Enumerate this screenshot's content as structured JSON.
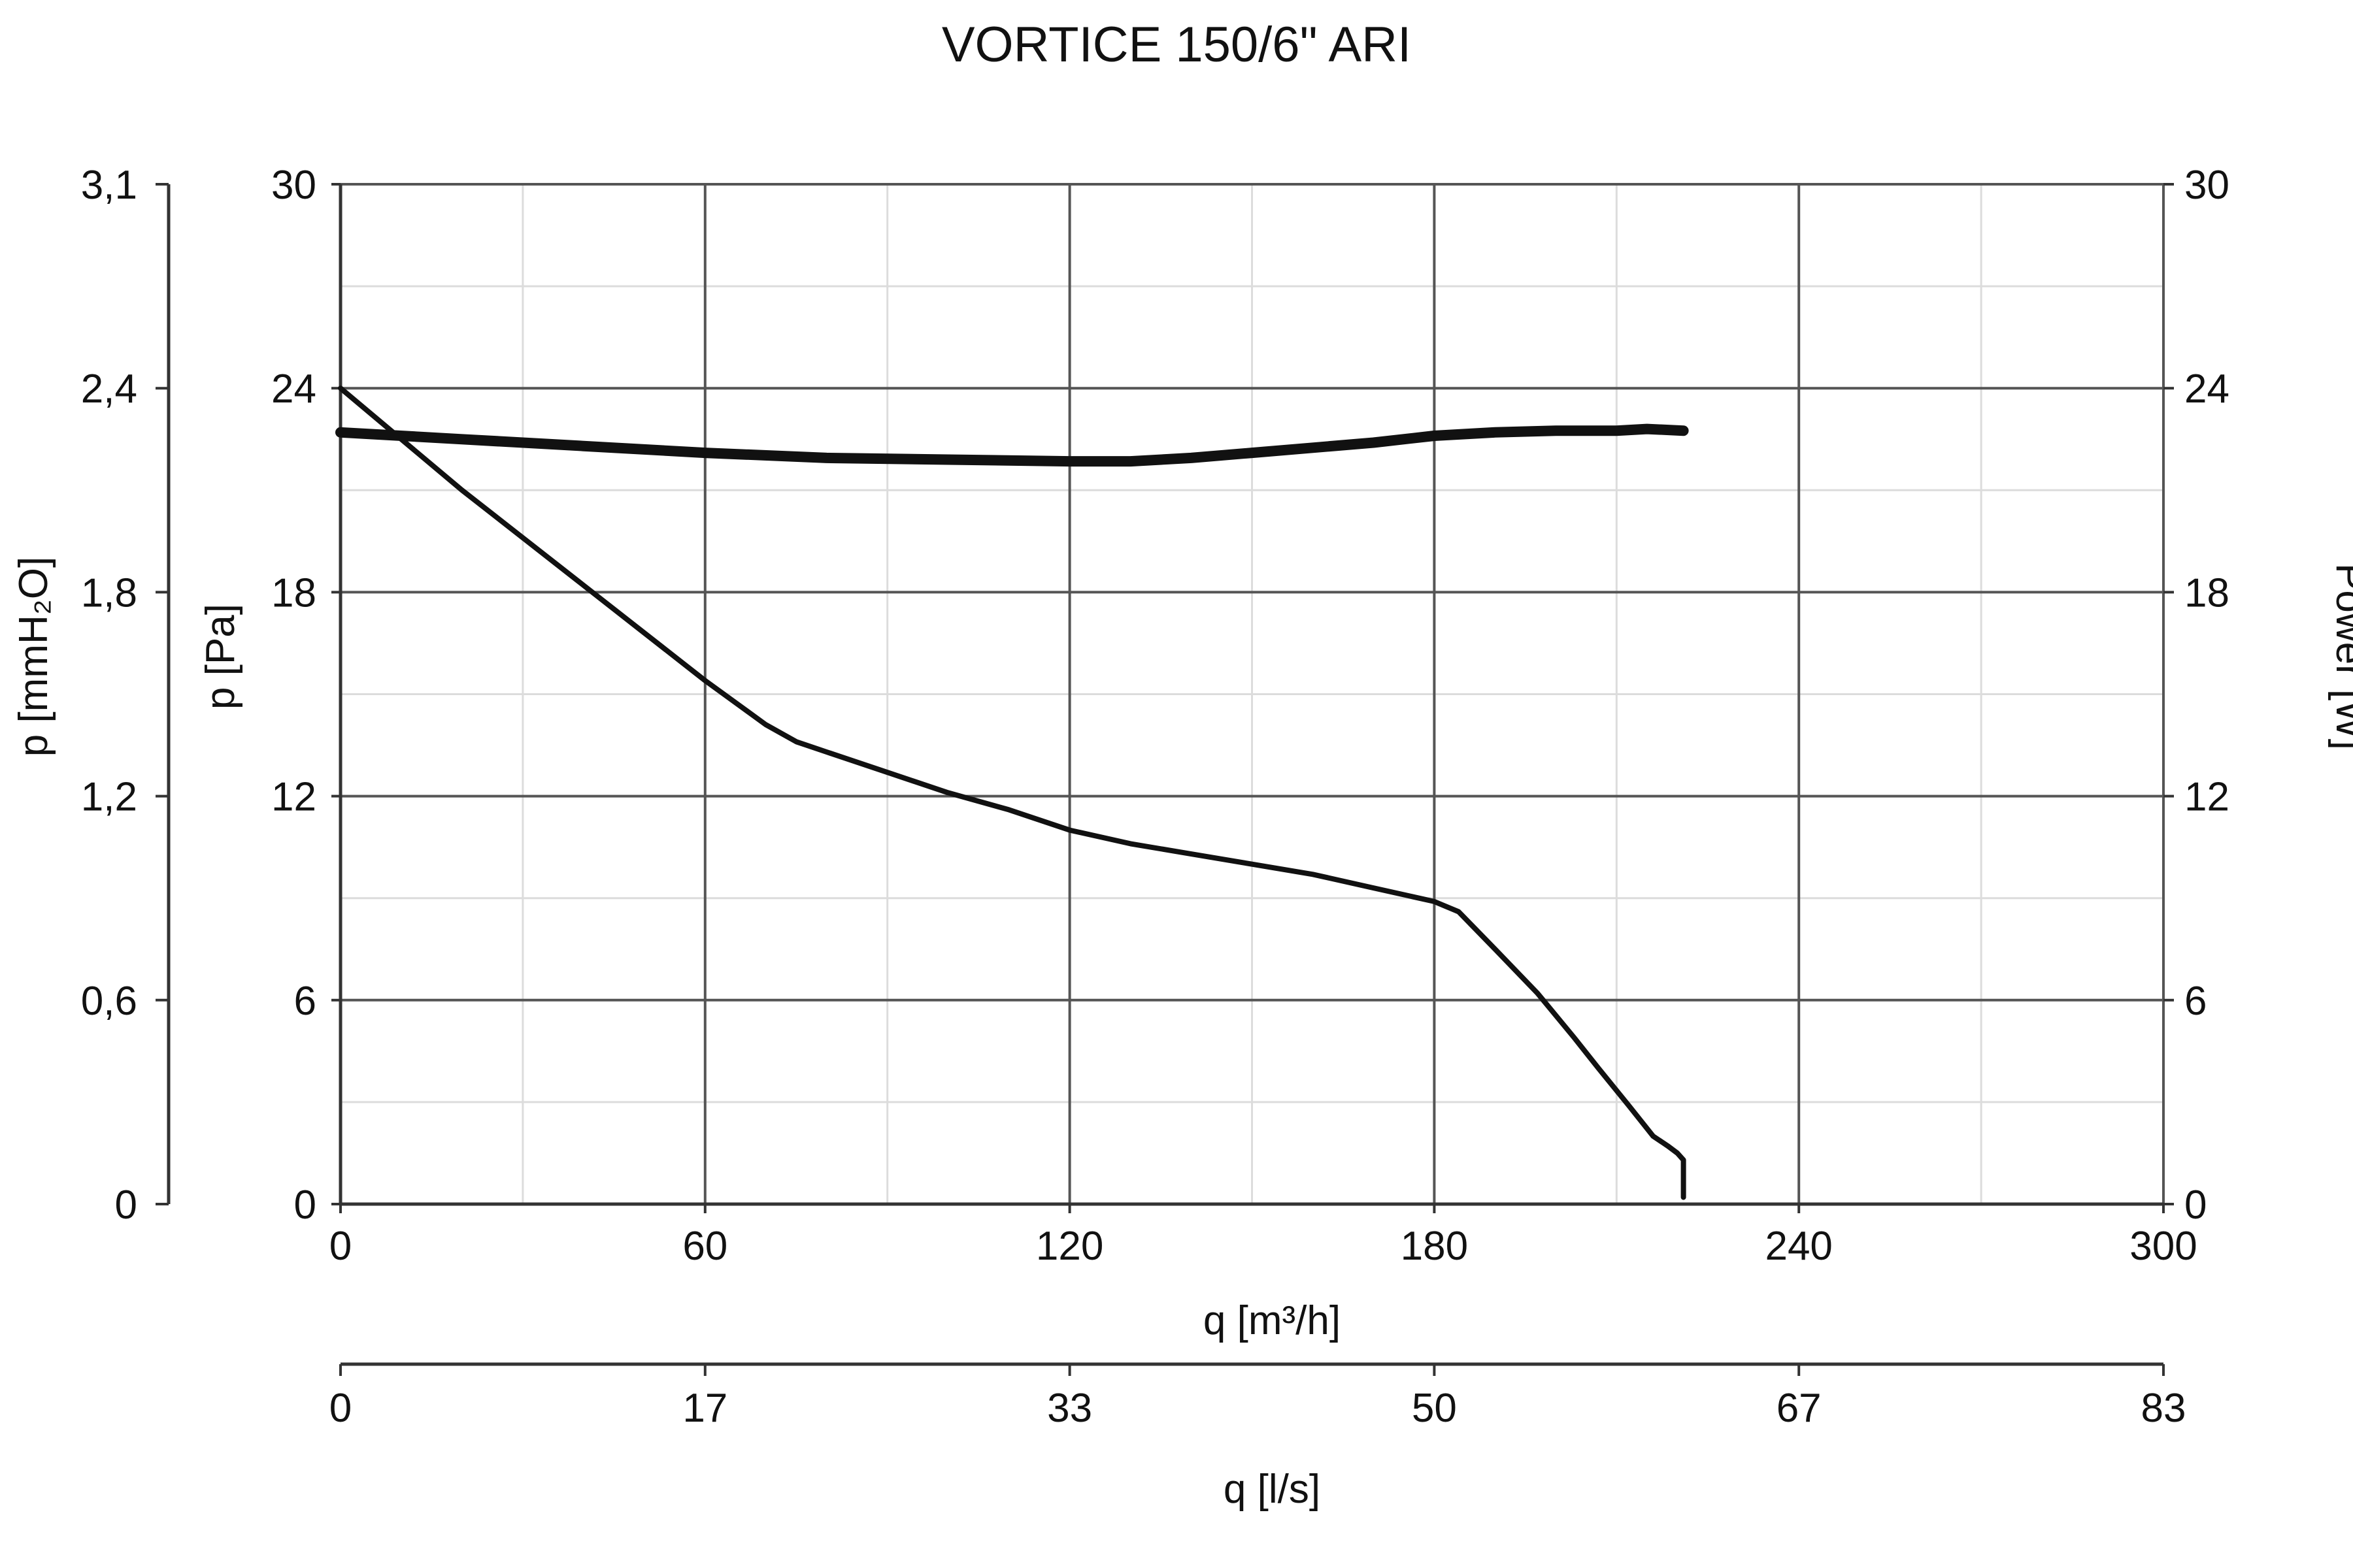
{
  "chart_data": {
    "type": "line",
    "title": "VORTICE 150/6\" ARI",
    "grid": true,
    "x_axis": {
      "label": "q [m³/h]",
      "range": [
        0,
        300
      ],
      "ticks": [
        "0",
        "60",
        "120",
        "180",
        "240",
        "300"
      ],
      "minor_step": 30
    },
    "x2_axis": {
      "label": "q [l/s]",
      "ticks": [
        "0",
        "17",
        "33",
        "50",
        "67",
        "83"
      ]
    },
    "y_axis": {
      "label": "p [Pa]",
      "range": [
        0,
        30
      ],
      "ticks": [
        "0",
        "6",
        "12",
        "18",
        "24",
        "30"
      ],
      "minor_step": 3
    },
    "y_axis_outer": {
      "label": "p [mmH₂O]",
      "ticks": [
        "0",
        "0,6",
        "1,2",
        "1,8",
        "2,4",
        "3,1"
      ]
    },
    "y2_axis": {
      "label": "Power [W]",
      "range": [
        0,
        30
      ],
      "ticks": [
        "0",
        "6",
        "12",
        "18",
        "24",
        "30"
      ]
    },
    "series": [
      {
        "id": "pressure",
        "axis": "p [Pa]",
        "color": "#111111",
        "x": [
          0,
          10,
          20,
          30,
          40,
          50,
          60,
          70,
          75,
          80,
          90,
          100,
          110,
          120,
          130,
          140,
          150,
          160,
          170,
          180,
          184,
          190,
          197,
          203,
          207,
          212,
          216,
          218.5,
          220,
          221,
          221
        ],
        "y": [
          24,
          22.5,
          21.0,
          19.6,
          18.2,
          16.8,
          15.4,
          14.1,
          13.6,
          13.3,
          12.7,
          12.1,
          11.6,
          11.0,
          10.6,
          10.3,
          10.0,
          9.7,
          9.3,
          8.9,
          8.6,
          7.5,
          6.2,
          4.9,
          4.0,
          2.9,
          2.0,
          1.7,
          1.5,
          1.3,
          0.2
        ]
      },
      {
        "id": "power",
        "axis": "Power [W]",
        "color": "#111111",
        "x": [
          0,
          20,
          40,
          60,
          80,
          100,
          120,
          130,
          140,
          150,
          160,
          170,
          180,
          190,
          200,
          210,
          215,
          221
        ],
        "y": [
          22.7,
          22.5,
          22.3,
          22.1,
          21.95,
          21.9,
          21.85,
          21.85,
          21.95,
          22.1,
          22.25,
          22.4,
          22.6,
          22.7,
          22.75,
          22.75,
          22.8,
          22.75
        ]
      }
    ]
  }
}
